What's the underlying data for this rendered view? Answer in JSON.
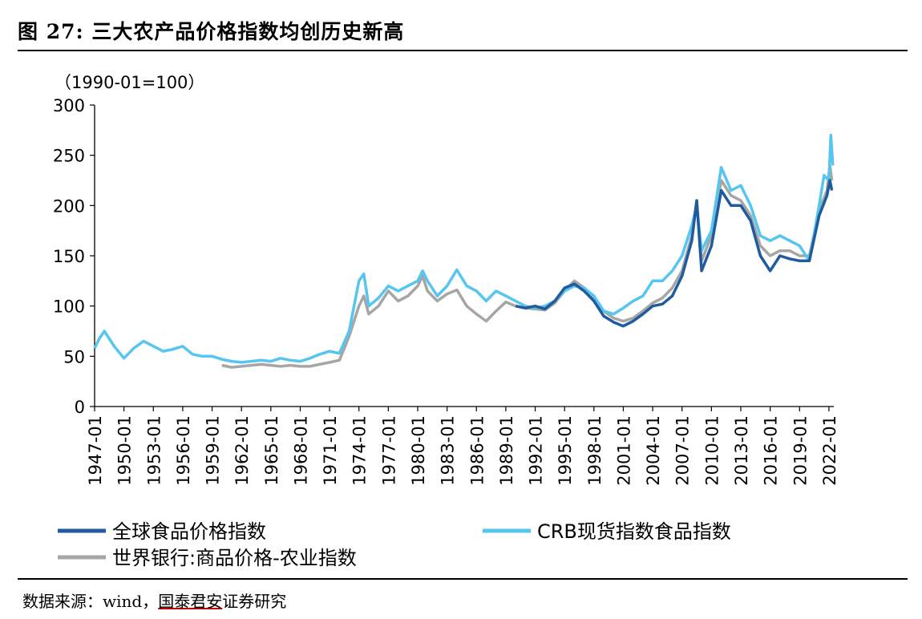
{
  "figure": {
    "title": "图 27: 三大农产品价格指数均创历史新高",
    "source_prefix": "数据来源：wind，",
    "source_brand": "国泰君安",
    "source_suffix": "证券研究"
  },
  "colors": {
    "global_food": "#1f5b9e",
    "crb_food": "#56c5f0",
    "wb_agri": "#a6a6a6",
    "axis": "#000000"
  },
  "chart_data": {
    "type": "line",
    "unit_label": "（1990-01=100）",
    "ylim": [
      0,
      300
    ],
    "yticks": [
      "0",
      "50",
      "100",
      "150",
      "200",
      "250",
      "300"
    ],
    "xlim": [
      1947.0,
      2022.5
    ],
    "xticks": [
      "1947-01",
      "1950-01",
      "1953-01",
      "1956-01",
      "1959-01",
      "1962-01",
      "1965-01",
      "1968-01",
      "1971-01",
      "1974-01",
      "1977-01",
      "1980-01",
      "1983-01",
      "1986-01",
      "1989-01",
      "1992-01",
      "1995-01",
      "1998-01",
      "2001-01",
      "2004-01",
      "2007-01",
      "2010-01",
      "2013-01",
      "2016-01",
      "2019-01",
      "2022-01"
    ],
    "grid": false,
    "legend_position": "bottom",
    "series": [
      {
        "name": "世界银行:商品价格-农业指数",
        "color_key": "wb_agri",
        "points": [
          [
            1960,
            41
          ],
          [
            1961,
            39
          ],
          [
            1962,
            40
          ],
          [
            1963,
            41
          ],
          [
            1964,
            42
          ],
          [
            1965,
            41
          ],
          [
            1966,
            40
          ],
          [
            1967,
            41
          ],
          [
            1968,
            40
          ],
          [
            1969,
            40
          ],
          [
            1970,
            42
          ],
          [
            1971,
            44
          ],
          [
            1972,
            46
          ],
          [
            1973,
            70
          ],
          [
            1974,
            100
          ],
          [
            1974.5,
            110
          ],
          [
            1975,
            92
          ],
          [
            1976,
            100
          ],
          [
            1977,
            115
          ],
          [
            1978,
            105
          ],
          [
            1979,
            110
          ],
          [
            1980,
            120
          ],
          [
            1980.5,
            130
          ],
          [
            1981,
            115
          ],
          [
            1982,
            105
          ],
          [
            1983,
            112
          ],
          [
            1984,
            116
          ],
          [
            1985,
            100
          ],
          [
            1986,
            92
          ],
          [
            1987,
            85
          ],
          [
            1988,
            95
          ],
          [
            1989,
            104
          ],
          [
            1990,
            100
          ],
          [
            1991,
            98
          ],
          [
            1992,
            97
          ],
          [
            1993,
            96
          ],
          [
            1994,
            103
          ],
          [
            1995,
            115
          ],
          [
            1996,
            125
          ],
          [
            1997,
            118
          ],
          [
            1998,
            108
          ],
          [
            1999,
            95
          ],
          [
            2000,
            88
          ],
          [
            2001,
            85
          ],
          [
            2002,
            88
          ],
          [
            2003,
            95
          ],
          [
            2004,
            103
          ],
          [
            2005,
            108
          ],
          [
            2006,
            118
          ],
          [
            2007,
            135
          ],
          [
            2008,
            170
          ],
          [
            2008.5,
            205
          ],
          [
            2009,
            145
          ],
          [
            2010,
            170
          ],
          [
            2011,
            225
          ],
          [
            2012,
            210
          ],
          [
            2013,
            205
          ],
          [
            2014,
            190
          ],
          [
            2015,
            160
          ],
          [
            2016,
            150
          ],
          [
            2017,
            155
          ],
          [
            2018,
            155
          ],
          [
            2019,
            150
          ],
          [
            2020,
            150
          ],
          [
            2021,
            195
          ],
          [
            2021.8,
            215
          ],
          [
            2022.1,
            240
          ],
          [
            2022.3,
            225
          ]
        ]
      },
      {
        "name": "CRB现货指数食品指数",
        "color_key": "crb_food",
        "points": [
          [
            1947,
            58
          ],
          [
            1947.5,
            68
          ],
          [
            1948,
            75
          ],
          [
            1949,
            60
          ],
          [
            1950,
            48
          ],
          [
            1951,
            58
          ],
          [
            1952,
            65
          ],
          [
            1953,
            60
          ],
          [
            1954,
            55
          ],
          [
            1955,
            57
          ],
          [
            1956,
            60
          ],
          [
            1957,
            52
          ],
          [
            1958,
            50
          ],
          [
            1959,
            50
          ],
          [
            1960,
            47
          ],
          [
            1961,
            45
          ],
          [
            1962,
            44
          ],
          [
            1963,
            45
          ],
          [
            1964,
            46
          ],
          [
            1965,
            45
          ],
          [
            1966,
            48
          ],
          [
            1967,
            46
          ],
          [
            1968,
            45
          ],
          [
            1969,
            48
          ],
          [
            1970,
            52
          ],
          [
            1971,
            55
          ],
          [
            1972,
            53
          ],
          [
            1973,
            75
          ],
          [
            1974,
            125
          ],
          [
            1974.5,
            132
          ],
          [
            1975,
            100
          ],
          [
            1976,
            108
          ],
          [
            1977,
            120
          ],
          [
            1978,
            115
          ],
          [
            1979,
            120
          ],
          [
            1980,
            125
          ],
          [
            1980.5,
            135
          ],
          [
            1981,
            125
          ],
          [
            1982,
            110
          ],
          [
            1983,
            120
          ],
          [
            1984,
            136
          ],
          [
            1985,
            120
          ],
          [
            1986,
            115
          ],
          [
            1987,
            105
          ],
          [
            1988,
            115
          ],
          [
            1989,
            110
          ],
          [
            1990,
            105
          ],
          [
            1991,
            100
          ],
          [
            1992,
            98
          ],
          [
            1993,
            100
          ],
          [
            1994,
            105
          ],
          [
            1995,
            115
          ],
          [
            1996,
            120
          ],
          [
            1997,
            118
          ],
          [
            1998,
            110
          ],
          [
            1999,
            95
          ],
          [
            2000,
            92
          ],
          [
            2001,
            98
          ],
          [
            2002,
            105
          ],
          [
            2003,
            110
          ],
          [
            2004,
            125
          ],
          [
            2005,
            125
          ],
          [
            2006,
            135
          ],
          [
            2007,
            150
          ],
          [
            2008,
            180
          ],
          [
            2008.5,
            200
          ],
          [
            2009,
            155
          ],
          [
            2010,
            175
          ],
          [
            2011,
            238
          ],
          [
            2012,
            215
          ],
          [
            2013,
            220
          ],
          [
            2014,
            200
          ],
          [
            2015,
            170
          ],
          [
            2016,
            165
          ],
          [
            2017,
            170
          ],
          [
            2018,
            165
          ],
          [
            2019,
            160
          ],
          [
            2020,
            145
          ],
          [
            2021,
            200
          ],
          [
            2021.5,
            230
          ],
          [
            2022,
            225
          ],
          [
            2022.2,
            270
          ],
          [
            2022.4,
            240
          ]
        ]
      },
      {
        "name": "全球食品价格指数",
        "color_key": "global_food",
        "points": [
          [
            1990,
            100
          ],
          [
            1991,
            98
          ],
          [
            1992,
            100
          ],
          [
            1993,
            97
          ],
          [
            1994,
            105
          ],
          [
            1995,
            118
          ],
          [
            1996,
            122
          ],
          [
            1997,
            115
          ],
          [
            1998,
            105
          ],
          [
            1999,
            90
          ],
          [
            2000,
            84
          ],
          [
            2001,
            80
          ],
          [
            2002,
            85
          ],
          [
            2003,
            92
          ],
          [
            2004,
            100
          ],
          [
            2005,
            102
          ],
          [
            2006,
            110
          ],
          [
            2007,
            130
          ],
          [
            2008,
            165
          ],
          [
            2008.5,
            205
          ],
          [
            2009,
            135
          ],
          [
            2010,
            160
          ],
          [
            2011,
            215
          ],
          [
            2012,
            200
          ],
          [
            2013,
            200
          ],
          [
            2014,
            185
          ],
          [
            2015,
            150
          ],
          [
            2016,
            135
          ],
          [
            2017,
            150
          ],
          [
            2018,
            147
          ],
          [
            2019,
            145
          ],
          [
            2020,
            145
          ],
          [
            2021,
            190
          ],
          [
            2021.8,
            210
          ],
          [
            2022.1,
            225
          ],
          [
            2022.3,
            215
          ]
        ]
      }
    ]
  }
}
